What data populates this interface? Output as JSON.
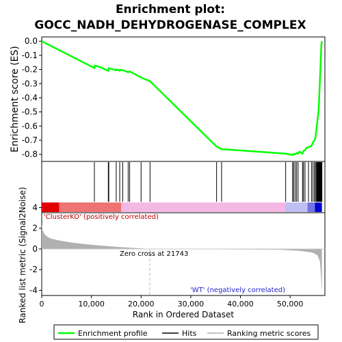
{
  "colors": {
    "es_line": "#00ff00",
    "hits": "#000000",
    "metric": "#b0b0b0",
    "zero_line": "#c8c8c8",
    "pos_band": "#e00000",
    "neg_band": "#0000cc",
    "mid_band": "#f4b8e4"
  },
  "chart_data": {
    "type": "line",
    "title_line1": "Enrichment plot:",
    "title_line2": "GOCC_NADH_DEHYDROGENASE_COMPLEX",
    "es_panel": {
      "ylabel": "Enrichment score (ES)",
      "ylim": [
        -0.85,
        0.03
      ],
      "yticks": [
        "0.0",
        "-0.1",
        "-0.2",
        "-0.3",
        "-0.4",
        "-0.5",
        "-0.6",
        "-0.7",
        "-0.8"
      ],
      "ytick_values": [
        0.0,
        -0.1,
        -0.2,
        -0.3,
        -0.4,
        -0.5,
        -0.6,
        -0.7,
        -0.8
      ],
      "x": [
        0,
        10600,
        10700,
        11800,
        13400,
        13500,
        14200,
        15000,
        15100,
        15700,
        15800,
        16300,
        17400,
        17700,
        20000,
        21800,
        35200,
        36200,
        49100,
        50500,
        50700,
        51000,
        51300,
        51600,
        51900,
        52500,
        52700,
        53000,
        53300,
        53700,
        54000,
        54300,
        54600,
        54900,
        55100,
        55300,
        55500,
        55700,
        55800,
        55900,
        56000,
        56100,
        56200,
        56300,
        56400
      ],
      "y": [
        0.0,
        -0.19,
        -0.172,
        -0.183,
        -0.21,
        -0.191,
        -0.198,
        -0.206,
        -0.2,
        -0.209,
        -0.202,
        -0.205,
        -0.219,
        -0.213,
        -0.257,
        -0.283,
        -0.745,
        -0.763,
        -0.795,
        -0.805,
        -0.797,
        -0.8,
        -0.79,
        -0.795,
        -0.781,
        -0.795,
        -0.775,
        -0.77,
        -0.755,
        -0.748,
        -0.745,
        -0.74,
        -0.715,
        -0.7,
        -0.68,
        -0.62,
        -0.56,
        -0.5,
        -0.44,
        -0.36,
        -0.28,
        -0.19,
        -0.1,
        -0.02,
        0.0
      ],
      "xlim": [
        0,
        57000
      ]
    },
    "hits_x": [
      10600,
      13400,
      13500,
      15000,
      15700,
      16300,
      17400,
      17700,
      20000,
      21800,
      35200,
      36200,
      49100,
      50500,
      50700,
      51000,
      51300,
      51600,
      52500,
      52700,
      53000,
      53700,
      54300,
      54600,
      54900,
      55100,
      55300,
      55400,
      55500,
      55600,
      55700,
      55800,
      55900,
      56000,
      56100,
      56200,
      56300,
      56400
    ],
    "metric_panel": {
      "ylabel": "Ranked list metric (Signal2Noise)",
      "ylim": [
        -4.5,
        3.5
      ],
      "yticks": [
        "4",
        "2",
        "0",
        "-2",
        "-4"
      ],
      "ytick_values": [
        4,
        2,
        0,
        -2,
        -4
      ],
      "xlabel": "Rank in Ordered Dataset",
      "xticks": [
        "0",
        "10,000",
        "20,000",
        "30,000",
        "40,000",
        "50,000"
      ],
      "xtick_values": [
        0,
        10000,
        20000,
        30000,
        40000,
        50000
      ],
      "curve_x": [
        0,
        200,
        600,
        1200,
        2000,
        3500,
        6000,
        10000,
        15000,
        21743,
        30000,
        40000,
        48000,
        52000,
        54500,
        55500,
        56000,
        56200,
        56400
      ],
      "curve_y": [
        2.3,
        1.8,
        1.4,
        1.15,
        0.98,
        0.82,
        0.62,
        0.4,
        0.2,
        0.0,
        -0.02,
        -0.05,
        -0.08,
        -0.18,
        -0.35,
        -0.6,
        -1.2,
        -2.5,
        -4.3
      ],
      "zero_cross_label": "Zero cross at 21743",
      "zero_cross_x": 21743,
      "pos_label": "'ClusterKO' (positively correlated)",
      "neg_label": "'WT' (negatively correlated)"
    },
    "legend": [
      "Enrichment profile",
      "Hits",
      "Ranking metric scores"
    ]
  }
}
